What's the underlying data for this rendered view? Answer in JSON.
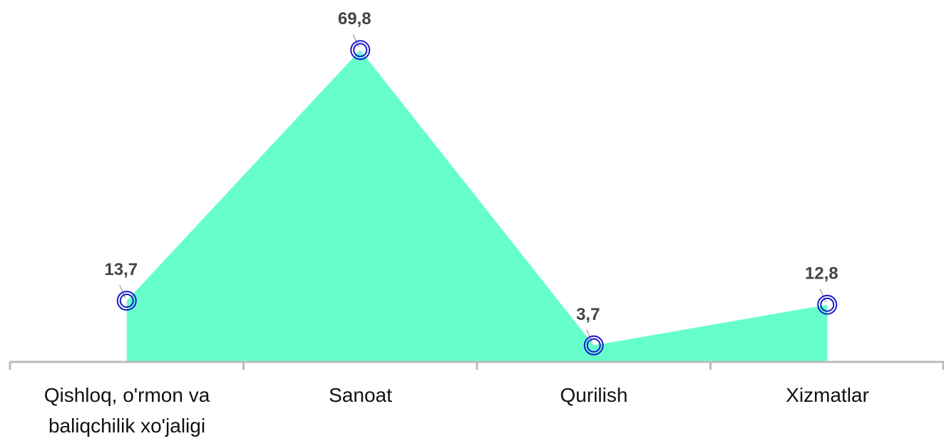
{
  "chart_data": {
    "type": "area",
    "categories": [
      "Qishloq, o'rmon va baliqchilik xo'jaligi",
      "Sanoat",
      "Qurilish",
      "Xizmatlar"
    ],
    "values": [
      13.7,
      69.8,
      3.7,
      12.8
    ],
    "value_labels": [
      "13,7",
      "69,8",
      "3,7",
      "12,8"
    ],
    "color": "#66ffcc",
    "marker_color": "#1a1acc",
    "ylim": [
      0,
      81
    ]
  }
}
